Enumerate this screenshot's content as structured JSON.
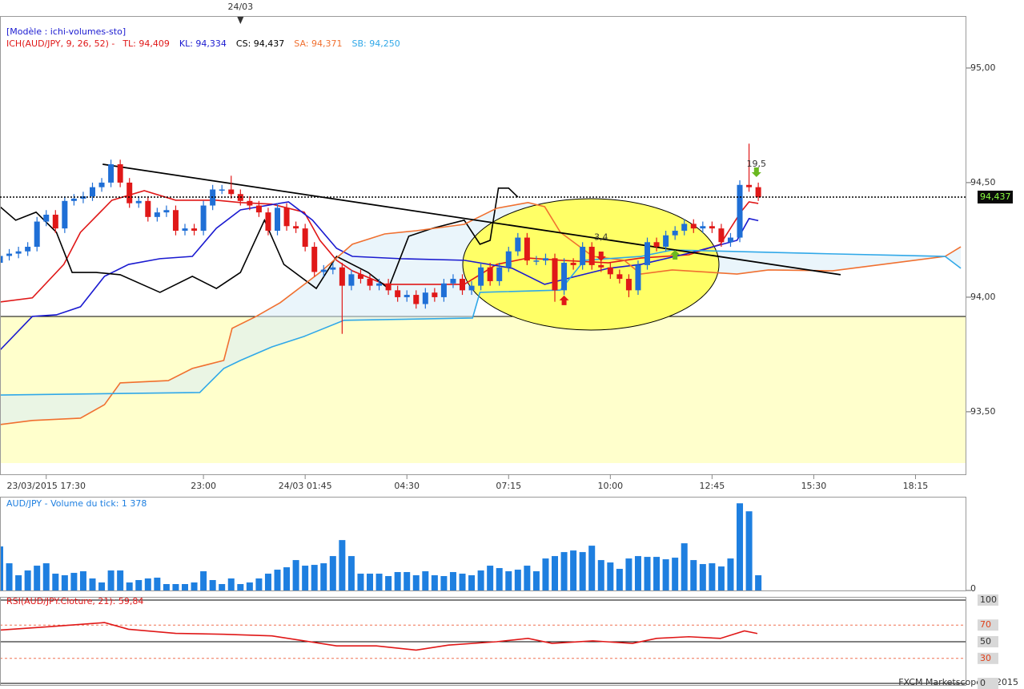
{
  "chart_data": [
    {
      "type": "candlestick",
      "model": "[Modèle : ichi-volumes-sto]",
      "indicator": "ICH(AUD/JPY, 9, 26, 52) -",
      "top_marker": {
        "label": "24/03",
        "x": 26
      },
      "x": [
        0,
        1,
        2,
        3,
        4,
        5,
        6,
        7,
        8,
        9,
        10,
        11,
        12,
        13,
        14,
        15,
        16,
        17,
        18,
        19,
        20,
        21,
        22,
        23,
        24,
        25,
        26,
        27,
        28,
        29,
        30,
        31,
        32,
        33,
        34,
        35,
        36,
        37,
        38,
        39,
        40,
        41,
        42,
        43,
        44,
        45,
        46,
        47,
        48,
        49,
        50,
        51,
        52,
        53,
        54,
        55,
        56,
        57,
        58,
        59,
        60,
        61,
        62,
        63,
        64,
        65,
        66,
        67,
        68,
        69,
        70,
        71,
        72,
        73,
        74,
        75,
        76,
        77,
        78,
        79,
        80,
        81,
        82
      ],
      "open": [
        94.15,
        94.18,
        94.19,
        94.2,
        94.22,
        94.33,
        94.36,
        94.3,
        94.42,
        94.43,
        94.44,
        94.48,
        94.5,
        94.58,
        94.5,
        94.41,
        94.42,
        94.35,
        94.37,
        94.38,
        94.29,
        94.3,
        94.29,
        94.4,
        94.47,
        94.47,
        94.45,
        94.42,
        94.4,
        94.37,
        94.29,
        94.39,
        94.31,
        94.3,
        94.22,
        94.11,
        94.12,
        94.13,
        94.05,
        94.1,
        94.08,
        94.05,
        94.06,
        94.03,
        94.0,
        94.01,
        93.97,
        94.02,
        94.0,
        94.06,
        94.08,
        94.03,
        94.05,
        94.13,
        94.07,
        94.13,
        94.2,
        94.26,
        94.16,
        94.16,
        94.17,
        94.03,
        94.15,
        94.14,
        94.22,
        94.14,
        94.13,
        94.1,
        94.08,
        94.03,
        94.14,
        94.24,
        94.22,
        94.27,
        94.29,
        94.32,
        94.3,
        94.31,
        94.3,
        94.24,
        94.26,
        94.49,
        94.48
      ],
      "high": [
        94.2,
        94.21,
        94.22,
        94.24,
        94.35,
        94.38,
        94.38,
        94.44,
        94.45,
        94.46,
        94.5,
        94.52,
        94.6,
        94.6,
        94.52,
        94.44,
        94.44,
        94.39,
        94.4,
        94.4,
        94.32,
        94.32,
        94.42,
        94.49,
        94.49,
        94.53,
        94.47,
        94.44,
        94.42,
        94.39,
        94.41,
        94.41,
        94.33,
        94.32,
        94.24,
        94.14,
        94.15,
        94.15,
        94.12,
        94.12,
        94.1,
        94.08,
        94.08,
        94.05,
        94.03,
        94.03,
        94.04,
        94.04,
        94.08,
        94.1,
        94.1,
        94.07,
        94.15,
        94.15,
        94.15,
        94.22,
        94.28,
        94.28,
        94.18,
        94.19,
        94.19,
        94.17,
        94.17,
        94.24,
        94.24,
        94.16,
        94.15,
        94.12,
        94.1,
        94.16,
        94.26,
        94.26,
        94.29,
        94.31,
        94.34,
        94.34,
        94.33,
        94.33,
        94.32,
        94.28,
        94.51,
        94.67,
        94.5
      ],
      "low": [
        94.13,
        94.16,
        94.17,
        94.18,
        94.2,
        94.31,
        94.28,
        94.28,
        94.4,
        94.41,
        94.42,
        94.46,
        94.48,
        94.48,
        94.39,
        94.39,
        94.33,
        94.33,
        94.35,
        94.27,
        94.27,
        94.27,
        94.27,
        94.38,
        94.45,
        94.43,
        94.4,
        94.38,
        94.35,
        94.27,
        94.27,
        94.29,
        94.28,
        94.2,
        94.09,
        94.09,
        94.1,
        93.84,
        94.03,
        94.06,
        94.03,
        94.03,
        94.01,
        93.98,
        93.98,
        93.95,
        93.95,
        93.98,
        93.98,
        94.04,
        94.01,
        94.01,
        94.03,
        94.05,
        94.05,
        94.11,
        94.18,
        94.14,
        94.14,
        94.14,
        93.98,
        94.01,
        94.12,
        94.12,
        94.12,
        94.11,
        94.08,
        94.06,
        94.0,
        94.01,
        94.12,
        94.2,
        94.2,
        94.25,
        94.27,
        94.28,
        94.28,
        94.28,
        94.22,
        94.22,
        94.24,
        94.46,
        94.42
      ],
      "close": [
        94.18,
        94.19,
        94.2,
        94.22,
        94.33,
        94.36,
        94.3,
        94.42,
        94.43,
        94.44,
        94.48,
        94.5,
        94.58,
        94.5,
        94.41,
        94.42,
        94.35,
        94.37,
        94.38,
        94.29,
        94.3,
        94.29,
        94.4,
        94.47,
        94.47,
        94.45,
        94.42,
        94.4,
        94.37,
        94.29,
        94.39,
        94.31,
        94.3,
        94.22,
        94.11,
        94.12,
        94.13,
        94.05,
        94.1,
        94.08,
        94.05,
        94.06,
        94.03,
        94.0,
        94.01,
        93.97,
        94.02,
        94.0,
        94.06,
        94.08,
        94.03,
        94.05,
        94.13,
        94.07,
        94.13,
        94.2,
        94.26,
        94.16,
        94.16,
        94.17,
        94.03,
        94.15,
        94.14,
        94.22,
        94.14,
        94.13,
        94.1,
        94.08,
        94.03,
        94.14,
        94.24,
        94.22,
        94.27,
        94.29,
        94.32,
        94.3,
        94.31,
        94.3,
        94.24,
        94.26,
        94.49,
        94.48,
        94.437
      ],
      "up_color": "#1f6fd6",
      "down_color": "#e01818",
      "series": [
        {
          "name": "TL: 94,409",
          "color": "#e01818",
          "x": [
            0,
            3.5,
            6.9,
            8.7,
            12.1,
            15.6,
            19,
            23.4,
            26,
            29.4,
            32.9,
            34.6,
            36.4,
            38.1,
            41.6,
            45,
            50.2,
            53.7,
            57.1,
            60.6,
            65.8,
            69.3,
            74.5,
            77.9,
            80.1,
            81,
            82
          ],
          "values": [
            93.979,
            93.997,
            94.143,
            94.283,
            94.423,
            94.465,
            94.423,
            94.423,
            94.413,
            94.406,
            94.371,
            94.248,
            94.161,
            94.115,
            94.056,
            94.056,
            94.056,
            94.143,
            94.171,
            94.161,
            94.15,
            94.171,
            94.185,
            94.231,
            94.371,
            94.416,
            94.409
          ]
        },
        {
          "name": "KL: 94,334",
          "color": "#1a1ad0",
          "x": [
            0,
            3.5,
            6.1,
            8.7,
            11.3,
            13.9,
            17.3,
            20.8,
            23.4,
            26,
            31.2,
            33.8,
            36.4,
            38.1,
            43.3,
            50.2,
            55.4,
            58.9,
            62.3,
            65.8,
            69.3,
            74.5,
            79.7,
            81,
            82
          ],
          "values": [
            93.769,
            93.916,
            93.923,
            93.958,
            94.091,
            94.143,
            94.168,
            94.178,
            94.301,
            94.381,
            94.416,
            94.336,
            94.213,
            94.178,
            94.168,
            94.161,
            94.126,
            94.056,
            94.091,
            94.126,
            94.143,
            94.192,
            94.248,
            94.343,
            94.334
          ]
        },
        {
          "name": "CS: 94,437",
          "color": "#000000",
          "x": [
            0,
            1.7,
            3.9,
            6.1,
            7.8,
            10.4,
            13,
            17.3,
            20.8,
            23.4,
            26,
            28.6,
            30.7,
            34.2,
            36.4,
            39.8,
            42,
            44.2,
            46.8,
            50.2,
            51.9,
            53,
            53.9,
            55,
            56
          ],
          "values": [
            94.395,
            94.336,
            94.371,
            94.283,
            94.108,
            94.108,
            94.098,
            94.021,
            94.091,
            94.038,
            94.108,
            94.336,
            94.143,
            94.038,
            94.178,
            94.108,
            94.038,
            94.266,
            94.301,
            94.336,
            94.231,
            94.248,
            94.476,
            94.476,
            94.437
          ]
        },
        {
          "name": "SA: 94,371",
          "color": "#f07030",
          "x": [
            0,
            3.5,
            8.7,
            11.3,
            13,
            18.2,
            20.8,
            24.2,
            25.1,
            27.7,
            30.3,
            34.6,
            38.1,
            41.6,
            45,
            50.2,
            53.7,
            57.1,
            58.9,
            60.6,
            64.1,
            67.5,
            69.3,
            72.7,
            79.7,
            83.1,
            90,
            102.2,
            103.9
          ],
          "values": [
            93.444,
            93.462,
            93.472,
            93.531,
            93.626,
            93.636,
            93.689,
            93.724,
            93.864,
            93.916,
            93.976,
            94.108,
            94.231,
            94.276,
            94.29,
            94.318,
            94.388,
            94.413,
            94.395,
            94.283,
            94.178,
            94.161,
            94.101,
            94.119,
            94.101,
            94.119,
            94.115,
            94.178,
            94.22
          ]
        },
        {
          "name": "SB: 94,250",
          "color": "#30a8e8",
          "x": [
            0,
            21.6,
            24.2,
            26,
            29.4,
            32.9,
            37.2,
            51.1,
            51.9,
            60.6,
            63.2,
            69.3,
            72.7,
            90,
            102.2,
            103.9
          ],
          "values": [
            93.573,
            93.584,
            93.689,
            93.724,
            93.783,
            93.829,
            93.899,
            93.909,
            94.021,
            94.031,
            94.161,
            94.178,
            94.206,
            94.189,
            94.178,
            94.126
          ]
        }
      ],
      "trendline": {
        "x": [
          11.1,
          90.9
        ],
        "values": [
          94.58,
          94.098
        ]
      },
      "level": 93.916,
      "current_price": {
        "value": 94.437,
        "label": "94,437"
      },
      "annotations": [
        {
          "text": "3,4",
          "x": 65,
          "y": 94.26
        },
        {
          "text": "19,5",
          "x": 81.8,
          "y": 94.58
        }
      ],
      "signals": [
        {
          "x": 61,
          "y": 93.986,
          "dir": "up",
          "color": "#e01818"
        },
        {
          "x": 65,
          "y": 94.178,
          "dir": "down",
          "color": "#e01818"
        },
        {
          "x": 73,
          "y": 94.185,
          "dir": "up",
          "color": "#6ab820"
        },
        {
          "x": 81.8,
          "y": 94.545,
          "dir": "down",
          "color": "#6ab820"
        }
      ],
      "xlim": [
        0,
        104.5
      ],
      "ylim": [
        93.276,
        95.227
      ],
      "xticks": [
        {
          "value": 5,
          "label": "23/03/2015 17:30"
        },
        {
          "value": 22,
          "label": "23:00"
        },
        {
          "value": 33,
          "label": "24/03 01:45"
        },
        {
          "value": 44,
          "label": "04:30"
        },
        {
          "value": 55,
          "label": "07:15"
        },
        {
          "value": 66,
          "label": "10:00"
        },
        {
          "value": 77,
          "label": "12:45"
        },
        {
          "value": 88,
          "label": "15:30"
        },
        {
          "value": 99,
          "label": "18:15"
        }
      ],
      "yticks": [
        {
          "value": 95,
          "label": "95,00"
        },
        {
          "value": 94.5,
          "label": "94,50"
        },
        {
          "value": 94,
          "label": "94,00"
        },
        {
          "value": 93.5,
          "label": "93,50"
        }
      ]
    },
    {
      "type": "bar",
      "title": "AUD/JPY - Volume du tick: 1 378",
      "color": "#1e7fe0",
      "values": [
        3990,
        2465,
        1378,
        1813,
        2248,
        2465,
        1523,
        1378,
        1595,
        1740,
        1088,
        725,
        1813,
        1813,
        725,
        943,
        1088,
        1160,
        580,
        580,
        580,
        725,
        1740,
        943,
        580,
        1088,
        580,
        725,
        1088,
        1523,
        1885,
        2103,
        2755,
        2248,
        2320,
        2465,
        3118,
        4568,
        3118,
        1523,
        1523,
        1523,
        1305,
        1668,
        1668,
        1378,
        1740,
        1378,
        1305,
        1668,
        1523,
        1378,
        1813,
        2248,
        2030,
        1740,
        1885,
        2248,
        1740,
        2900,
        3118,
        3480,
        3625,
        3480,
        4060,
        2755,
        2538,
        1958,
        2900,
        3118,
        3045,
        3045,
        2828,
        2973,
        4278,
        2755,
        2393,
        2465,
        2175,
        2900,
        7903,
        7178,
        1378
      ],
      "ylim": [
        0,
        8500
      ],
      "yticks": [
        0
      ]
    },
    {
      "type": "line",
      "title": "RSI(AUD/JPY.Cloture, 21): 59,84",
      "color": "#e01818",
      "x": [
        0,
        5.2,
        11.3,
        13.9,
        19,
        24.2,
        29.4,
        32.9,
        36.4,
        40.7,
        45,
        48.5,
        53.7,
        57.1,
        59.7,
        64.1,
        68.4,
        71,
        74.5,
        77.9,
        80.5,
        81.9
      ],
      "values": [
        64,
        68,
        73,
        65,
        60,
        59,
        57,
        51,
        45,
        45,
        40,
        46,
        50,
        54,
        48,
        51,
        48,
        54,
        56,
        54,
        63,
        59.84
      ],
      "ylim": [
        0,
        100
      ],
      "yticks": [
        100,
        70,
        50,
        30,
        0
      ]
    }
  ],
  "footer": "FXCM Marketscope © 2015"
}
